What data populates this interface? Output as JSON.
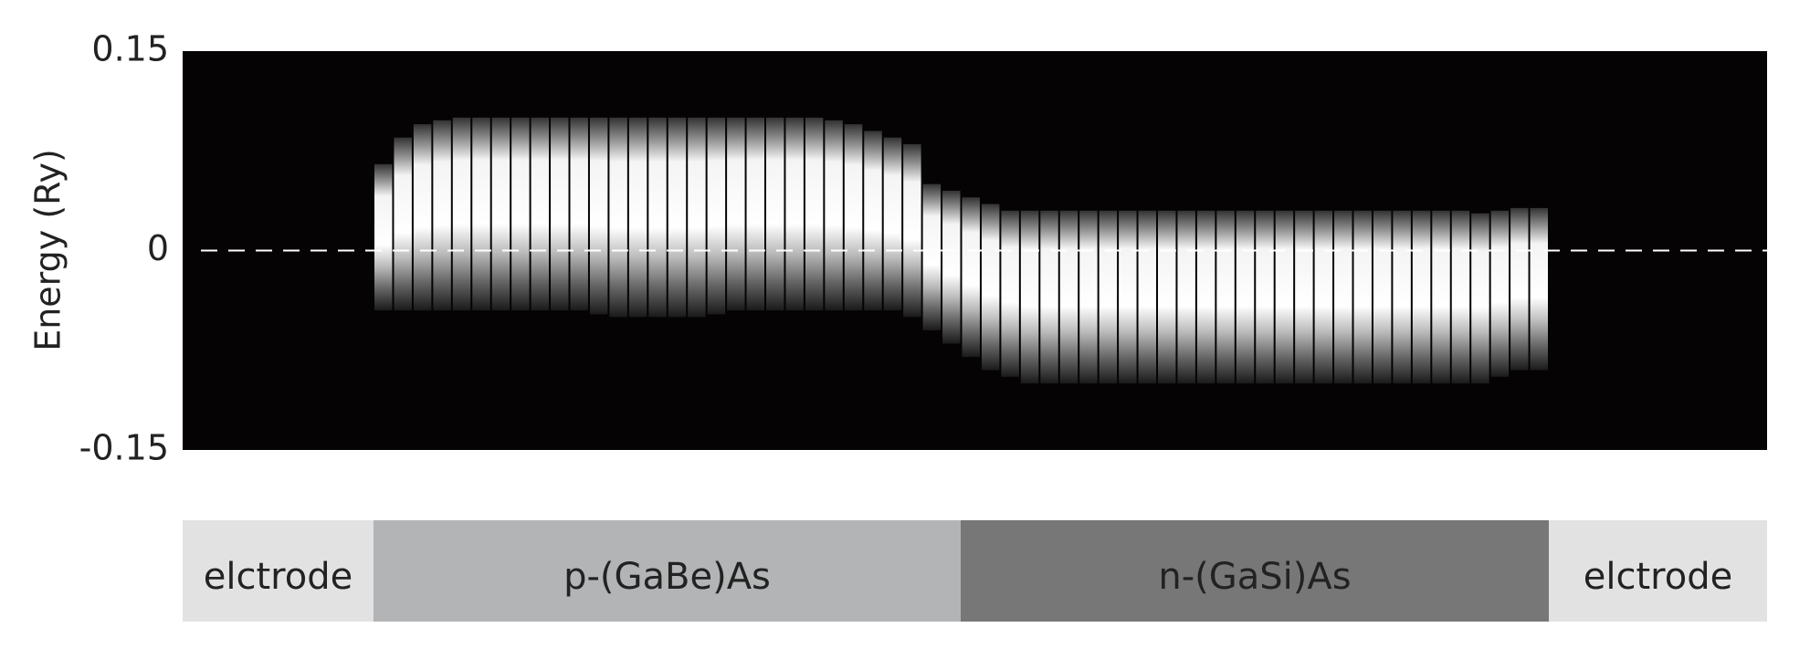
{
  "chart_data": {
    "type": "range-heatmap",
    "ylabel": "Energy (Ry)",
    "ylim": [
      -0.15,
      0.15
    ],
    "yticks": [
      -0.15,
      0,
      0.15
    ],
    "hline": 0,
    "high": [
      0.065,
      0.085,
      0.095,
      0.098,
      0.1,
      0.1,
      0.1,
      0.1,
      0.1,
      0.1,
      0.1,
      0.1,
      0.1,
      0.1,
      0.1,
      0.1,
      0.1,
      0.1,
      0.1,
      0.1,
      0.1,
      0.1,
      0.1,
      0.098,
      0.095,
      0.09,
      0.085,
      0.08,
      0.05,
      0.045,
      0.04,
      0.035,
      0.03,
      0.03,
      0.03,
      0.03,
      0.03,
      0.03,
      0.03,
      0.03,
      0.03,
      0.03,
      0.03,
      0.03,
      0.03,
      0.03,
      0.03,
      0.03,
      0.03,
      0.03,
      0.03,
      0.03,
      0.03,
      0.03,
      0.03,
      0.03,
      0.028,
      0.03,
      0.032,
      0.032
    ],
    "low": [
      -0.045,
      -0.045,
      -0.045,
      -0.045,
      -0.045,
      -0.045,
      -0.045,
      -0.045,
      -0.045,
      -0.045,
      -0.045,
      -0.048,
      -0.05,
      -0.05,
      -0.05,
      -0.05,
      -0.05,
      -0.048,
      -0.045,
      -0.045,
      -0.045,
      -0.045,
      -0.045,
      -0.045,
      -0.045,
      -0.045,
      -0.045,
      -0.05,
      -0.06,
      -0.07,
      -0.08,
      -0.09,
      -0.095,
      -0.1,
      -0.1,
      -0.1,
      -0.1,
      -0.1,
      -0.1,
      -0.1,
      -0.1,
      -0.1,
      -0.1,
      -0.1,
      -0.1,
      -0.1,
      -0.1,
      -0.1,
      -0.1,
      -0.1,
      -0.1,
      -0.1,
      -0.1,
      -0.1,
      -0.1,
      -0.1,
      -0.1,
      -0.095,
      -0.09,
      -0.09
    ],
    "regions": [
      {
        "label": "elctrode",
        "color": "#e2e2e2"
      },
      {
        "label": "p-(GaBe)As",
        "color": "#b3b4b5"
      },
      {
        "label": "n-(GaSi)As",
        "color": "#777777"
      },
      {
        "label": "elctrode",
        "color": "#e2e2e2"
      }
    ]
  }
}
